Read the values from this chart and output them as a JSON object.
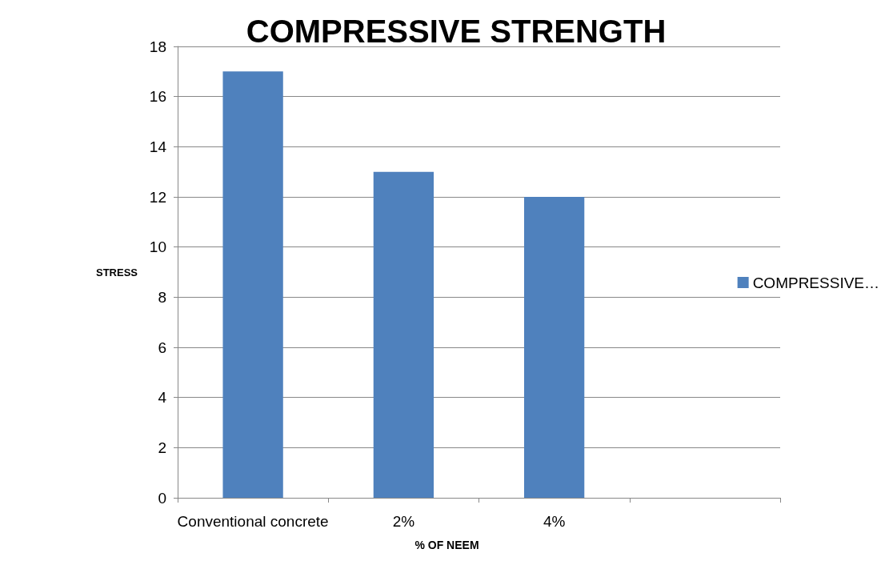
{
  "chart_data": {
    "type": "bar",
    "title": "COMPRESSIVE STRENGTH",
    "xlabel": "% OF NEEM",
    "ylabel": "STRESS",
    "categories": [
      "Conventional concrete",
      "2%",
      "4%",
      null
    ],
    "series": [
      {
        "name": "COMPRESSIVE…",
        "color": "#4f81bd",
        "values": [
          17,
          13,
          12,
          null
        ]
      }
    ],
    "ylim": [
      0,
      18
    ],
    "yticks": [
      0,
      2,
      4,
      6,
      8,
      10,
      12,
      14,
      16,
      18
    ],
    "grid": "y",
    "legend": "right"
  }
}
